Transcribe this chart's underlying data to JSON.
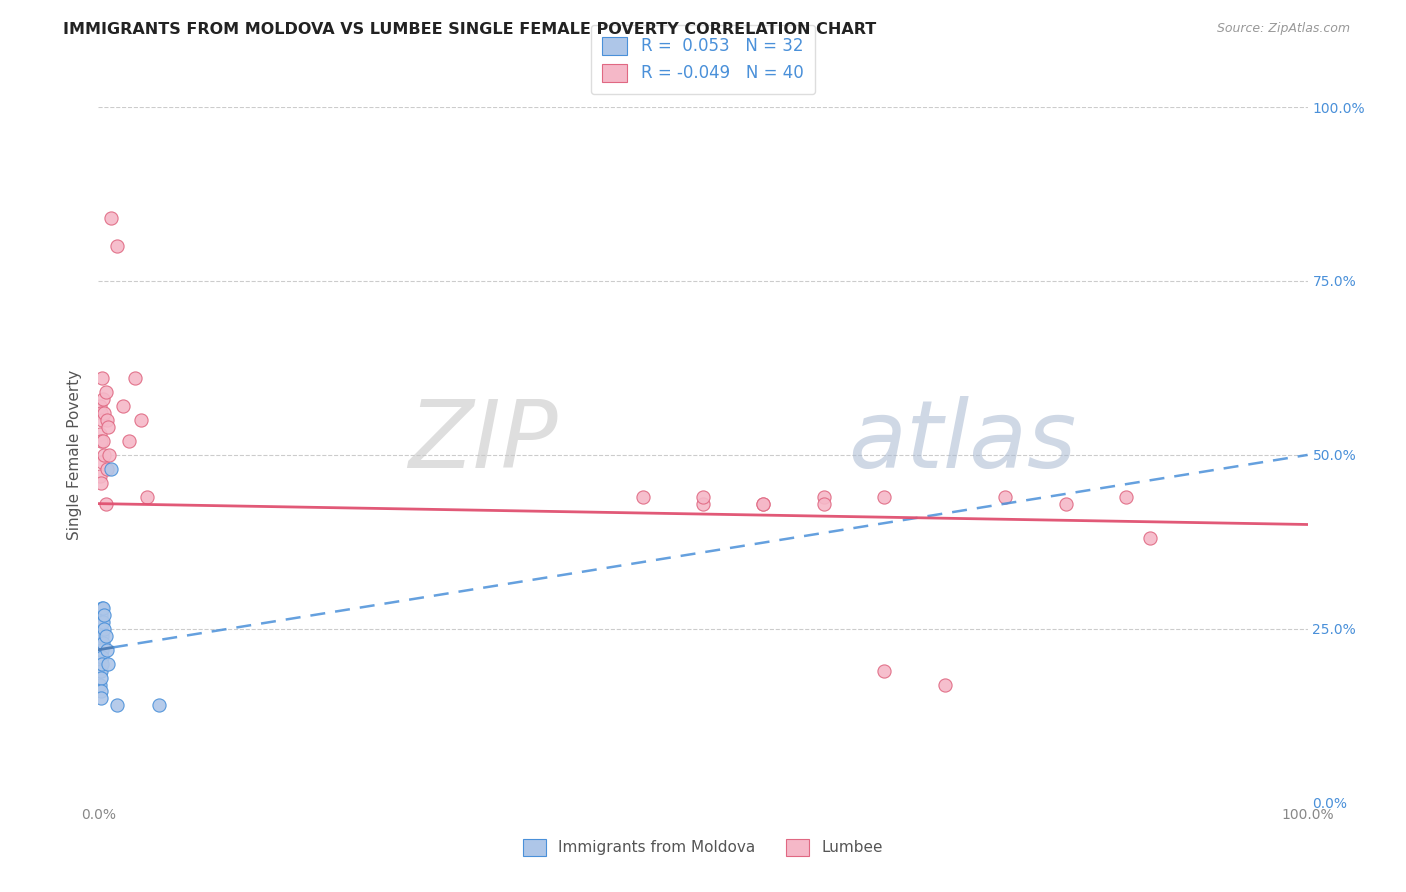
{
  "title": "IMMIGRANTS FROM MOLDOVA VS LUMBEE SINGLE FEMALE POVERTY CORRELATION CHART",
  "source": "Source: ZipAtlas.com",
  "ylabel": "Single Female Poverty",
  "legend1_label": "Immigrants from Moldova",
  "legend2_label": "Lumbee",
  "r1": 0.053,
  "n1": 32,
  "r2": -0.049,
  "n2": 40,
  "blue_fill": "#aec6e8",
  "blue_edge": "#4a90d9",
  "pink_fill": "#f5b8c8",
  "pink_edge": "#e06882",
  "blue_line": "#4a7bb5",
  "pink_line": "#e05070",
  "watermark_color": "#d0d8e8",
  "watermark_color2": "#d8c8d0",
  "xlim": [
    0.0,
    1.0
  ],
  "ylim": [
    0.0,
    1.0
  ],
  "moldova_x": [
    0.001,
    0.001,
    0.001,
    0.001,
    0.001,
    0.002,
    0.002,
    0.002,
    0.002,
    0.002,
    0.002,
    0.002,
    0.002,
    0.002,
    0.002,
    0.003,
    0.003,
    0.003,
    0.003,
    0.003,
    0.003,
    0.004,
    0.004,
    0.004,
    0.005,
    0.005,
    0.006,
    0.007,
    0.008,
    0.01,
    0.015,
    0.05
  ],
  "moldova_y": [
    0.24,
    0.22,
    0.21,
    0.19,
    0.17,
    0.27,
    0.26,
    0.25,
    0.23,
    0.22,
    0.2,
    0.19,
    0.18,
    0.16,
    0.15,
    0.28,
    0.26,
    0.24,
    0.22,
    0.21,
    0.2,
    0.28,
    0.26,
    0.23,
    0.27,
    0.25,
    0.24,
    0.22,
    0.2,
    0.48,
    0.14,
    0.14
  ],
  "lumbee_x": [
    0.001,
    0.001,
    0.001,
    0.002,
    0.002,
    0.002,
    0.003,
    0.003,
    0.003,
    0.004,
    0.004,
    0.005,
    0.005,
    0.006,
    0.006,
    0.007,
    0.007,
    0.008,
    0.009,
    0.01,
    0.015,
    0.02,
    0.025,
    0.03,
    0.035,
    0.04,
    0.45,
    0.5,
    0.55,
    0.6,
    0.65,
    0.7,
    0.75,
    0.8,
    0.85,
    0.87,
    0.5,
    0.55,
    0.6,
    0.65
  ],
  "lumbee_y": [
    0.57,
    0.53,
    0.47,
    0.56,
    0.52,
    0.46,
    0.61,
    0.55,
    0.49,
    0.58,
    0.52,
    0.56,
    0.5,
    0.59,
    0.43,
    0.55,
    0.48,
    0.54,
    0.5,
    0.84,
    0.8,
    0.57,
    0.52,
    0.61,
    0.55,
    0.44,
    0.44,
    0.43,
    0.43,
    0.44,
    0.19,
    0.17,
    0.44,
    0.43,
    0.44,
    0.38,
    0.44,
    0.43,
    0.43,
    0.44
  ]
}
